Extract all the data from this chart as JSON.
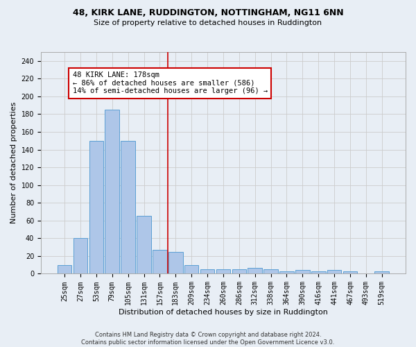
{
  "title_line1": "48, KIRK LANE, RUDDINGTON, NOTTINGHAM, NG11 6NN",
  "title_line2": "Size of property relative to detached houses in Ruddington",
  "xlabel": "Distribution of detached houses by size in Ruddington",
  "ylabel": "Number of detached properties",
  "footnote": "Contains HM Land Registry data © Crown copyright and database right 2024.\nContains public sector information licensed under the Open Government Licence v3.0.",
  "bar_labels": [
    "25sqm",
    "27sqm",
    "53sqm",
    "79sqm",
    "105sqm",
    "131sqm",
    "157sqm",
    "183sqm",
    "209sqm",
    "234sqm",
    "260sqm",
    "286sqm",
    "312sqm",
    "338sqm",
    "364sqm",
    "390sqm",
    "416sqm",
    "441sqm",
    "467sqm",
    "493sqm",
    "519sqm"
  ],
  "bar_values": [
    10,
    40,
    150,
    185,
    150,
    65,
    27,
    25,
    10,
    5,
    5,
    5,
    7,
    5,
    3,
    4,
    3,
    4,
    3,
    0,
    3
  ],
  "bar_color": "#aec6e8",
  "bar_edge_color": "#5a9fd4",
  "vline_color": "#cc0000",
  "vline_pos": 6.5,
  "annotation_text": "48 KIRK LANE: 178sqm\n← 86% of detached houses are smaller (586)\n14% of semi-detached houses are larger (96) →",
  "annotation_box_color": "#ffffff",
  "annotation_border_color": "#cc0000",
  "grid_color": "#cccccc",
  "background_color": "#e8eef5",
  "ylim": [
    0,
    250
  ],
  "yticks": [
    0,
    20,
    40,
    60,
    80,
    100,
    120,
    140,
    160,
    180,
    200,
    220,
    240
  ],
  "title1_fontsize": 9,
  "title2_fontsize": 8,
  "xlabel_fontsize": 8,
  "ylabel_fontsize": 8,
  "tick_fontsize": 7,
  "footnote_fontsize": 6
}
